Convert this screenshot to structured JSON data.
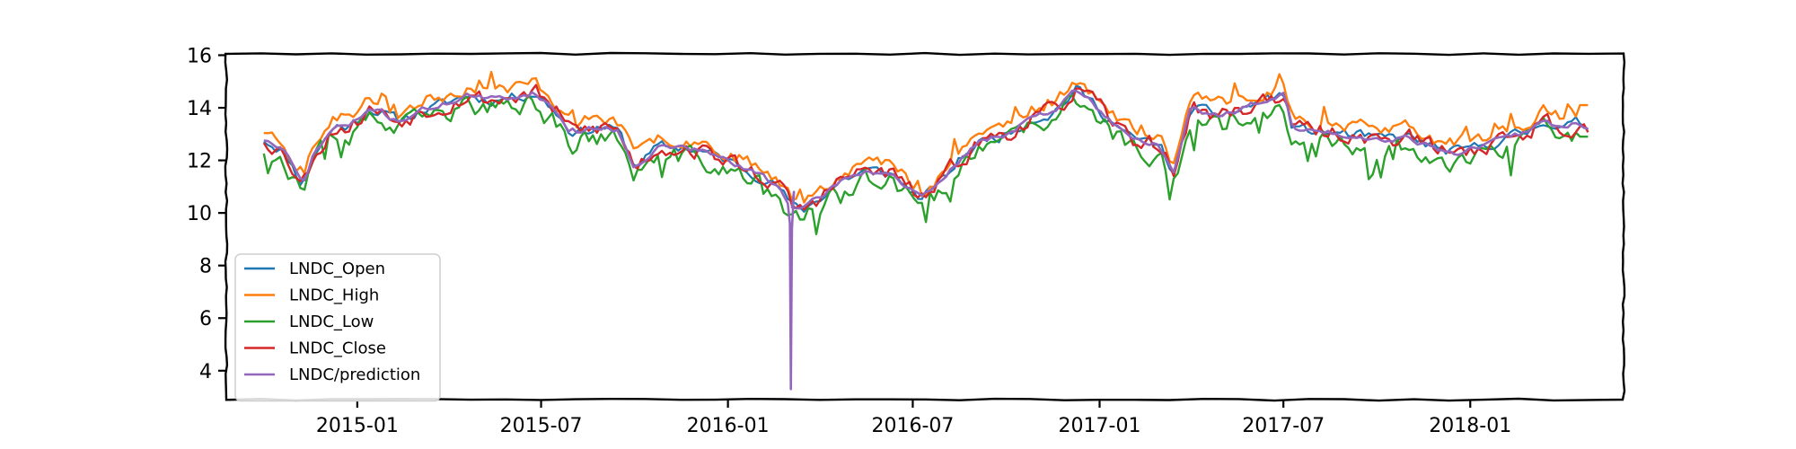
{
  "chart_data": {
    "type": "line",
    "title": "",
    "xlabel": "",
    "ylabel": "",
    "x_start": "2014-10-01",
    "x_end": "2018-04-30",
    "xlim": [
      "2014-08-25",
      "2018-06-01"
    ],
    "ylim": [
      2.9,
      16.05
    ],
    "xticks": [
      {
        "date": "2015-01-01",
        "label": "2015-01"
      },
      {
        "date": "2015-07-01",
        "label": "2015-07"
      },
      {
        "date": "2016-01-01",
        "label": "2016-01"
      },
      {
        "date": "2016-07-01",
        "label": "2016-07"
      },
      {
        "date": "2017-01-01",
        "label": "2017-01"
      },
      {
        "date": "2017-07-01",
        "label": "2017-07"
      },
      {
        "date": "2018-01-01",
        "label": "2018-01"
      }
    ],
    "yticks": [
      4,
      6,
      8,
      10,
      12,
      14,
      16
    ],
    "legend_position": "lower-left",
    "grid": false,
    "style": "xkcd-like hand-drawn frame",
    "anchors_date": [
      "2014-10-01",
      "2014-10-20",
      "2014-11-08",
      "2014-11-20",
      "2014-12-10",
      "2014-12-25",
      "2015-01-15",
      "2015-02-10",
      "2015-03-05",
      "2015-03-25",
      "2015-04-20",
      "2015-05-10",
      "2015-06-01",
      "2015-06-25",
      "2015-07-15",
      "2015-07-28",
      "2015-08-10",
      "2015-09-01",
      "2015-09-15",
      "2015-10-01",
      "2015-10-25",
      "2015-11-20",
      "2015-12-10",
      "2016-01-01",
      "2016-01-20",
      "2016-02-05",
      "2016-02-20",
      "2016-03-05",
      "2016-03-15",
      "2016-04-01",
      "2016-04-20",
      "2016-05-15",
      "2016-06-10",
      "2016-07-01",
      "2016-07-10",
      "2016-08-01",
      "2016-08-20",
      "2016-09-10",
      "2016-10-01",
      "2016-10-25",
      "2016-11-15",
      "2016-12-10",
      "2016-12-25",
      "2017-01-10",
      "2017-02-01",
      "2017-03-01",
      "2017-03-15",
      "2017-04-01",
      "2017-04-25",
      "2017-05-20",
      "2017-06-10",
      "2017-07-01",
      "2017-07-10",
      "2017-08-01",
      "2017-09-01",
      "2017-10-01",
      "2017-11-01",
      "2017-12-01",
      "2017-12-20",
      "2018-01-10",
      "2018-02-01",
      "2018-03-01",
      "2018-03-15",
      "2018-04-01",
      "2018-04-15",
      "2018-04-30"
    ],
    "anchors_value": [
      12.8,
      12.4,
      11.1,
      12.3,
      13.3,
      13.3,
      14.0,
      13.5,
      13.9,
      14.1,
      14.5,
      14.3,
      14.4,
      14.6,
      13.9,
      13.2,
      13.1,
      13.3,
      13.1,
      11.8,
      12.5,
      12.5,
      12.3,
      12.0,
      11.6,
      11.4,
      11.0,
      10.2,
      10.1,
      10.6,
      11.2,
      11.6,
      11.5,
      10.8,
      10.5,
      11.3,
      12.2,
      12.8,
      13.0,
      13.6,
      13.8,
      14.7,
      14.2,
      13.6,
      12.8,
      12.6,
      11.5,
      14.0,
      13.7,
      13.9,
      14.3,
      14.5,
      13.2,
      13.1,
      13.0,
      12.8,
      12.9,
      12.4,
      12.3,
      12.5,
      12.8,
      13.1,
      13.6,
      13.2,
      13.4,
      13.3
    ],
    "series": [
      {
        "name": "LNDC_Open",
        "color": "#1f77b4",
        "offset": 0.0,
        "amp": 0.18,
        "seed": 11,
        "linewidth": 2.2
      },
      {
        "name": "LNDC_High",
        "color": "#ff7f0e",
        "offset": 0.35,
        "amp": 0.22,
        "seed": 23,
        "linewidth": 2.4,
        "last_value": 14.1
      },
      {
        "name": "LNDC_Low",
        "color": "#2ca02c",
        "offset": -0.38,
        "amp": 0.32,
        "seed": 37,
        "linewidth": 2.4,
        "last_value": 12.9
      },
      {
        "name": "LNDC_Close",
        "color": "#d62728",
        "offset": 0.0,
        "amp": 0.28,
        "seed": 53,
        "linewidth": 2.4
      },
      {
        "name": "LNDC/prediction",
        "color": "#9467bd",
        "offset": 0.0,
        "amp": 0.1,
        "seed": 71,
        "linewidth": 2.6,
        "spike": {
          "date": "2016-03-03",
          "value": 3.3
        }
      }
    ]
  }
}
